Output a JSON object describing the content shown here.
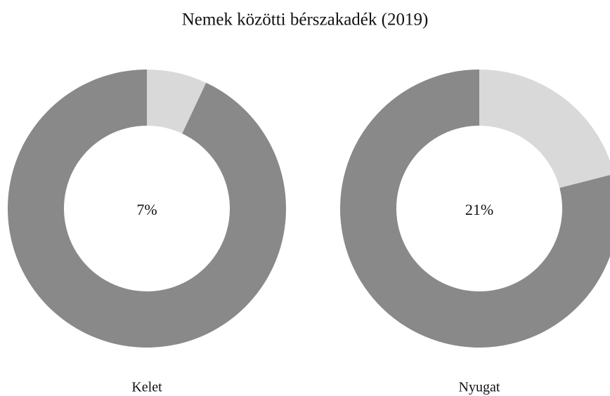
{
  "title": "Nemek közötti bérszakadék (2019)",
  "chart_data": [
    {
      "type": "donut",
      "label": "Kelet",
      "values": [
        7,
        93
      ],
      "value_labels": [
        "7%",
        null
      ],
      "colors": [
        "#d9d9d9",
        "#898989"
      ]
    },
    {
      "type": "donut",
      "label": "Nyugat",
      "values": [
        21,
        79
      ],
      "value_labels": [
        "21%",
        null
      ],
      "colors": [
        "#d9d9d9",
        "#898989"
      ]
    }
  ]
}
